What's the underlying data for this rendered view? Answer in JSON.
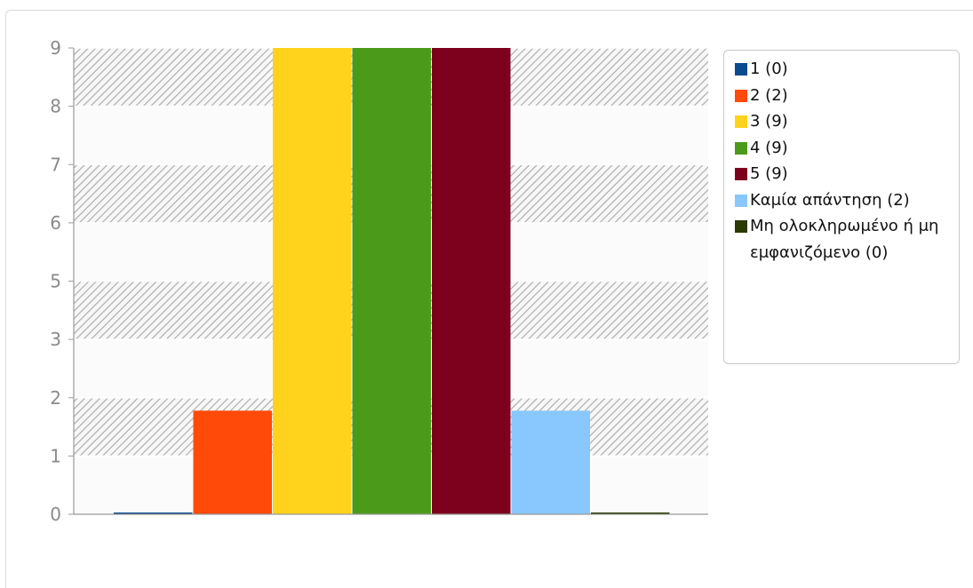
{
  "chart_data": {
    "type": "bar",
    "categories": [
      "1",
      "2",
      "3",
      "4",
      "5",
      "Καμία απάντηση",
      "Μη ολοκληρωμένο ή μη εμφανιζόμενο"
    ],
    "values": [
      0,
      2,
      9,
      9,
      9,
      2,
      0
    ],
    "colors": [
      "#0b4a8f",
      "#ff4a0a",
      "#ffd21c",
      "#4c9a1a",
      "#7d001c",
      "#88c8ff",
      "#2a3a00"
    ],
    "y_tick_labels": [
      "0",
      "1",
      "2",
      "3",
      "5",
      "6",
      "7",
      "8",
      "9"
    ],
    "ylim": [
      0,
      9
    ],
    "grid": true,
    "background_pattern": "alternating hatched and plain horizontal bands",
    "legend_position": "right",
    "legend": [
      {
        "label": "1 (0)",
        "color": "#0b4a8f"
      },
      {
        "label": "2 (2)",
        "color": "#ff4a0a"
      },
      {
        "label": "3 (9)",
        "color": "#ffd21c"
      },
      {
        "label": "4 (9)",
        "color": "#4c9a1a"
      },
      {
        "label": "5 (9)",
        "color": "#7d001c"
      },
      {
        "label": "Καμία απάντηση (2)",
        "color": "#88c8ff"
      },
      {
        "label": "Μη ολοκληρωμένο ή μη εμφανιζόμενο (0)",
        "color": "#2a3a00"
      }
    ]
  }
}
